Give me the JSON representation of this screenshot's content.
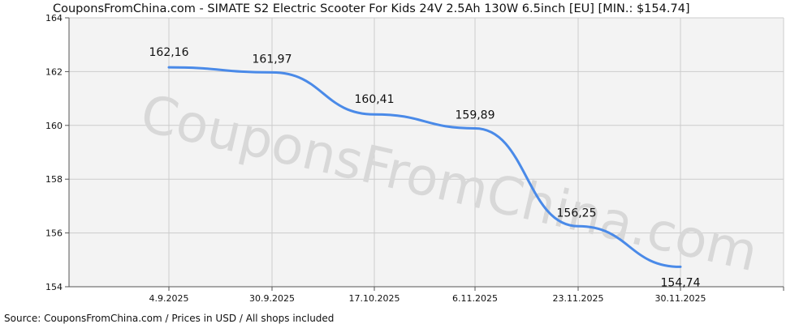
{
  "chart_data": {
    "type": "line",
    "title": "CouponsFromChina.com - SIMATE S2 Electric Scooter For Kids 24V 2.5Ah 130W 6.5inch [EU] [MIN.: $154.74]",
    "source": "Source: CouponsFromChina.com / Prices in USD / All shops included",
    "watermark": "CouponsFromChina.com",
    "x_tick_labels": [
      "4.9.2025",
      "30.9.2025",
      "17.10.2025",
      "6.11.2025",
      "23.11.2025",
      "30.11.2025"
    ],
    "y_ticks": [
      154,
      156,
      158,
      160,
      162,
      164
    ],
    "ylim": [
      154,
      164
    ],
    "grid": true,
    "series": [
      {
        "values": [
          162.16,
          161.97,
          160.41,
          159.89,
          156.25,
          154.74
        ],
        "labels": [
          "162,16",
          "161,97",
          "160,41",
          "159,89",
          "156,25",
          "154,74"
        ]
      }
    ],
    "colors": {
      "line": "#4a8ae8",
      "grid": "#cccccc",
      "plot_background": "#f3f3f3",
      "watermark": "#d8d8d8"
    }
  }
}
